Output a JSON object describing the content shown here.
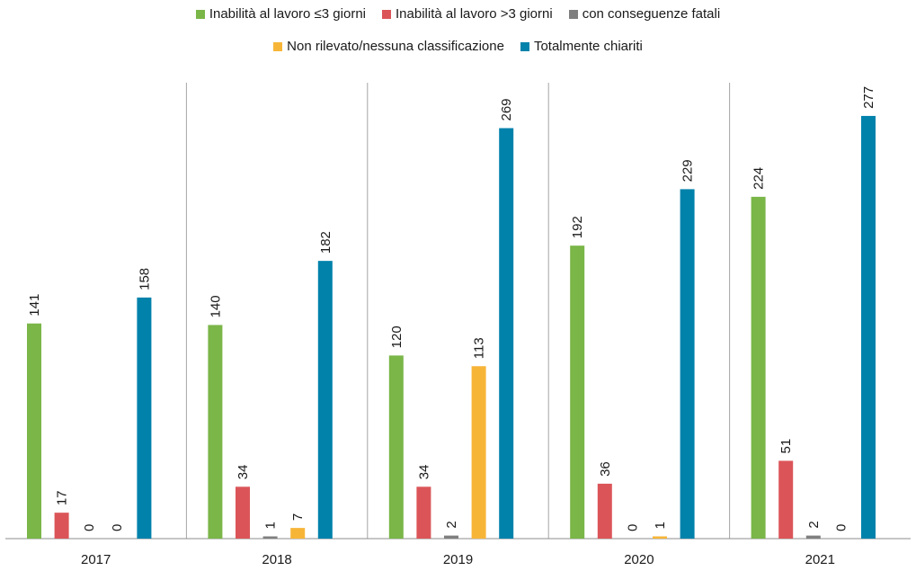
{
  "chart_data": {
    "type": "bar",
    "title": "",
    "xlabel": "",
    "ylabel": "",
    "ylim": [
      0,
      300
    ],
    "grid": false,
    "legend_position": "top-center",
    "categories": [
      "2017",
      "2018",
      "2019",
      "2020",
      "2021"
    ],
    "series": [
      {
        "name": "Inabilità al lavoro ≤3 giorni",
        "color": "#7ab648",
        "values": [
          141,
          140,
          120,
          192,
          224
        ]
      },
      {
        "name": "Inabilità al lavoro >3 giorni",
        "color": "#db5558",
        "values": [
          17,
          34,
          34,
          36,
          51
        ]
      },
      {
        "name": "con conseguenze fatali",
        "color": "#7f7f7f",
        "values": [
          0,
          1,
          2,
          0,
          2
        ]
      },
      {
        "name": "Non rilevato/nessuna classificazione",
        "color": "#f7b538",
        "values": [
          0,
          7,
          113,
          1,
          0
        ]
      },
      {
        "name": "Totalmente chiariti",
        "color": "#0082ab",
        "values": [
          158,
          182,
          269,
          229,
          277
        ]
      }
    ]
  }
}
